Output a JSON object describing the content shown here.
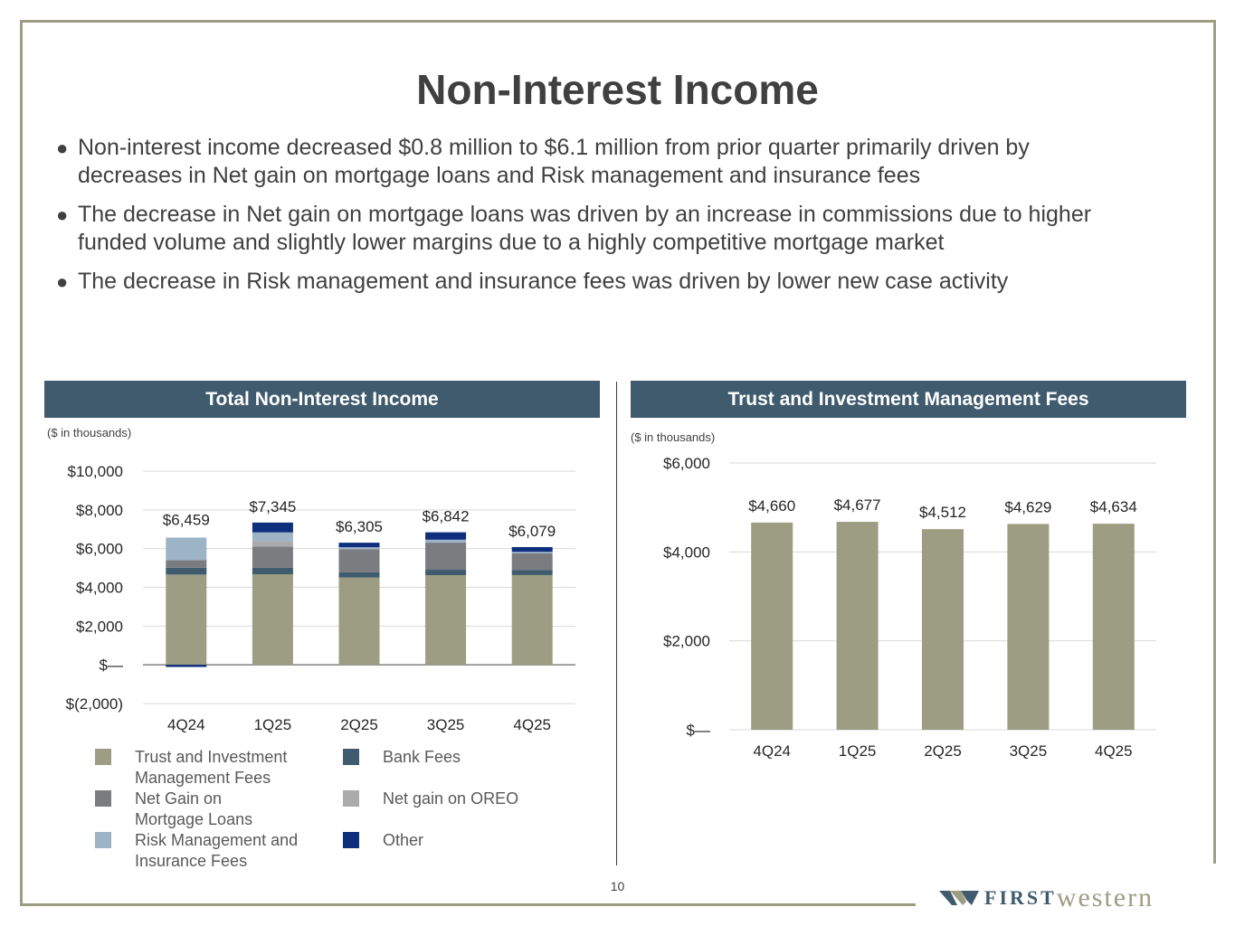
{
  "slide": {
    "title": "Non-Interest Income",
    "bullets": [
      "Non-interest income decreased $0.8 million to $6.1 million from prior quarter primarily driven by decreases in Net gain on mortgage loans and Risk management and insurance fees",
      "The decrease in Net gain on mortgage loans was driven by an increase in commissions due to higher funded volume and slightly lower margins due to a highly competitive mortgage market",
      "The decrease in Risk management and insurance fees was driven by lower new case activity"
    ],
    "page_number": "10",
    "logo": {
      "first": "FIRST",
      "western": "western"
    }
  },
  "left_panel": {
    "title": "Total Non-Interest Income",
    "units": "($ in thousands)"
  },
  "right_panel": {
    "title": "Trust and Investment Management Fees",
    "units": "($ in thousands)"
  },
  "colors": {
    "trust": "#9c9d82",
    "bank": "#3f5b6d",
    "mortgage": "#7b7c80",
    "oreo": "#aaaaaa",
    "risk": "#9db3c6",
    "other": "#0e2f7e",
    "header": "#3f5b6d"
  },
  "chart_data": [
    {
      "type": "bar",
      "stacked": true,
      "title": "Total Non-Interest Income",
      "ylabel": "($ in thousands)",
      "categories": [
        "4Q24",
        "1Q25",
        "2Q25",
        "3Q25",
        "4Q25"
      ],
      "ylim": [
        -2000,
        10000
      ],
      "yticks": [
        10000,
        8000,
        6000,
        4000,
        2000,
        0,
        -2000
      ],
      "ytick_labels": [
        "$10,000",
        "$8,000",
        "$6,000",
        "$4,000",
        "$2,000",
        "$—",
        "$(2,000)"
      ],
      "series": [
        {
          "name": "Trust and Investment Management Fees",
          "color_key": "trust",
          "values": [
            4660,
            4677,
            4512,
            4629,
            4634
          ]
        },
        {
          "name": "Bank Fees",
          "color_key": "bank",
          "values": [
            350,
            330,
            260,
            280,
            270
          ]
        },
        {
          "name": "Net Gain on Mortgage Loans",
          "color_key": "mortgage",
          "values": [
            400,
            1100,
            1200,
            1400,
            850
          ]
        },
        {
          "name": "Net gain on OREO",
          "color_key": "oreo",
          "values": [
            0,
            280,
            0,
            0,
            0
          ]
        },
        {
          "name": "Risk Management and Insurance Fees",
          "color_key": "risk",
          "values": [
            1160,
            450,
            100,
            150,
            80
          ]
        },
        {
          "name": "Other",
          "color_key": "other",
          "values": [
            -111,
            508,
            233,
            383,
            245
          ]
        }
      ],
      "totals": [
        6459,
        7345,
        6305,
        6842,
        6079
      ],
      "total_labels": [
        "$6,459",
        "$7,345",
        "$6,305",
        "$6,842",
        "$6,079"
      ],
      "legend": [
        {
          "label": "Trust and Investment Management Fees",
          "color_key": "trust"
        },
        {
          "label": "Bank Fees",
          "color_key": "bank"
        },
        {
          "label": "Net Gain on Mortgage Loans",
          "color_key": "mortgage"
        },
        {
          "label": "Net gain on OREO",
          "color_key": "oreo"
        },
        {
          "label": "Risk Management and Insurance Fees",
          "color_key": "risk"
        },
        {
          "label": "Other",
          "color_key": "other"
        }
      ]
    },
    {
      "type": "bar",
      "title": "Trust and Investment Management Fees",
      "ylabel": "($ in thousands)",
      "categories": [
        "4Q24",
        "1Q25",
        "2Q25",
        "3Q25",
        "4Q25"
      ],
      "values": [
        4660,
        4677,
        4512,
        4629,
        4634
      ],
      "value_labels": [
        "$4,660",
        "$4,677",
        "$4,512",
        "$4,629",
        "$4,634"
      ],
      "ylim": [
        0,
        6000
      ],
      "yticks": [
        6000,
        4000,
        2000,
        0
      ],
      "ytick_labels": [
        "$6,000",
        "$4,000",
        "$2,000",
        "$—"
      ]
    }
  ]
}
